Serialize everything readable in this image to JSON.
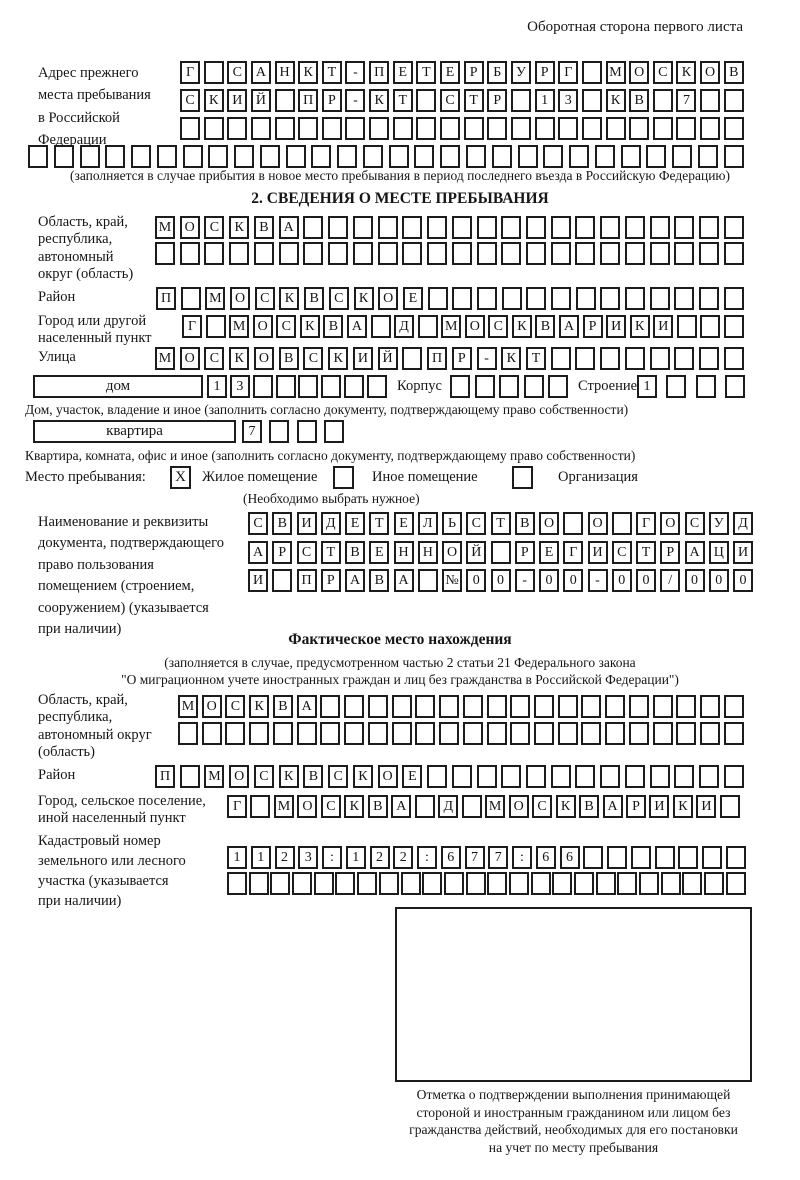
{
  "header": {
    "note": "Оборотная сторона первого листа"
  },
  "prev_address": {
    "label": "Адрес прежнего\nместа пребывания\nв Российской\nФедерации",
    "row1": {
      "t": "Г САНКТ-ПЕТЕРБУРГ МОСКОВ",
      "n": 24
    },
    "row2": {
      "t": "СКИЙ ПР-КТ СТР 13 КВ 7",
      "n": 24
    },
    "row3": {
      "t": "",
      "n": 24
    },
    "row4": {
      "t": "",
      "n": 28
    },
    "note": "(заполняется в случае прибытия в новое место пребывания в период последнего въезда в Российскую Федерацию)"
  },
  "section2": {
    "title": "2. СВЕДЕНИЯ О МЕСТЕ ПРЕБЫВАНИЯ",
    "region": {
      "label": "Область, край,\nреспублика,\nавтономный\nокруг (область)",
      "row1": {
        "t": "МОСКВА",
        "n": 24
      },
      "row2": {
        "t": "",
        "n": 24
      }
    },
    "district": {
      "label": "Район",
      "row": {
        "t": "П МОСКВСКОЕ",
        "n": 24
      }
    },
    "city": {
      "label": "Город или другой\nнаселенный пункт",
      "row": {
        "t": "Г МОСКВА Д МОСКВАРИКИ",
        "n": 24
      }
    },
    "street": {
      "label": "Улица",
      "row": {
        "t": "МОСКОВСКИЙ ПР-КТ",
        "n": 24
      }
    },
    "house": {
      "box_label": "дом",
      "cells": {
        "t": "13",
        "n": 8
      },
      "korpus_label": "Корпус",
      "korpus_cells": {
        "t": "",
        "n": 5
      },
      "stroenie_label": "Строение",
      "stroenie_cells": {
        "t": "1",
        "n": 4
      },
      "caption": "Дом, участок, владение и иное (заполнить согласно документу, подтверждающему право собственности)"
    },
    "apartment": {
      "box_label": "квартира",
      "cells": {
        "t": "7",
        "n": 4
      },
      "caption": "Квартира, комната, офис и иное (заполнить согласно документу, подтверждающему право собственности)"
    },
    "stay_type": {
      "label": "Место пребывания:",
      "options": [
        {
          "label": "Жилое помещение",
          "checked": "X"
        },
        {
          "label": "Иное помещение",
          "checked": ""
        },
        {
          "label": "Организация",
          "checked": ""
        }
      ],
      "hint": "(Необходимо выбрать нужное)"
    },
    "document": {
      "label": "Наименование и реквизиты\nдокумента, подтверждающего\nправо пользования\nпомещением (строением,\nсооружением) (указывается\nпри наличии)",
      "row1": {
        "t": "СВИДЕТЕЛЬСТВО О ГОСУД",
        "n": 21
      },
      "row2": {
        "t": "АРСТВЕННОЙ РЕГИСТРАЦИ",
        "n": 21
      },
      "row3": {
        "t": "И ПРАВА №00-00-00/000",
        "n": 21
      }
    }
  },
  "actual_location": {
    "title": "Фактическое место нахождения",
    "note1": "(заполняется в случае, предусмотренном частью 2 статьи 21 Федерального закона",
    "note2": "\"О миграционном учете иностранных граждан и лиц без гражданства в Российской Федерации\")",
    "region": {
      "label": "Область, край,\nреспублика,\nавтономный округ\n(область)",
      "row1": {
        "t": "МОСКВА",
        "n": 24
      },
      "row2": {
        "t": "",
        "n": 24
      }
    },
    "district": {
      "label": "Район",
      "row": {
        "t": "П МОСКВСКОЕ",
        "n": 24
      }
    },
    "city": {
      "label": "Город, сельское поселение,\nиной населенный пункт",
      "row": {
        "t": "Г МОСКВА Д МОСКВАРИКИ",
        "n": 22
      }
    },
    "cadastral": {
      "label": "Кадастровый номер\nземельного или лесного\nучастка (указывается\nпри наличии)",
      "row1": {
        "t": "1123:122:677:66",
        "n": 22
      },
      "row2": {
        "t": "",
        "n": 24
      }
    },
    "stamp": {
      "caption": "Отметка о подтверждении выполнения принимающей\nстороной и иностранным гражданином или лицом без\nгражданства действий, необходимых для его постановки\nна учет по месту пребывания"
    }
  }
}
